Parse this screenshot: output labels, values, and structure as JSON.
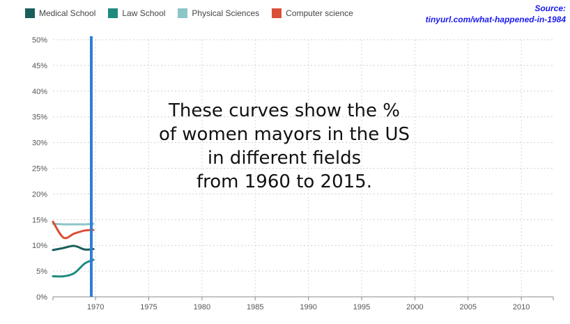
{
  "source": {
    "line1": "Source:",
    "line2": "tinyurl.com/what-happened-in-1984"
  },
  "chart_data": {
    "type": "line",
    "annotation": "These curves show the %\nof women mayors in the US\nin different fields\nfrom 1960 to 2015.",
    "xlim": [
      1966,
      2013
    ],
    "ylim": [
      0,
      50
    ],
    "x_ticks": [
      1970,
      1975,
      1980,
      1985,
      1990,
      1995,
      2000,
      2005,
      2010
    ],
    "y_ticks": [
      0,
      5,
      10,
      15,
      20,
      25,
      30,
      35,
      40,
      45,
      50
    ],
    "y_tick_labels": [
      "0%",
      "5%",
      "10%",
      "15%",
      "20%",
      "25%",
      "30%",
      "35%",
      "40%",
      "45%",
      "50%"
    ],
    "grid": true,
    "legend_position": "top-left",
    "cursor_year": 1969.6,
    "cursor_color": "#2f7fd6",
    "series": [
      {
        "name": "Medical School",
        "color": "#195e5a",
        "x": [
          1966,
          1967,
          1968,
          1969,
          1969.8
        ],
        "y": [
          9.1,
          9.5,
          9.9,
          9.2,
          9.3
        ]
      },
      {
        "name": "Law School",
        "color": "#1f8a7e",
        "x": [
          1966,
          1967,
          1968,
          1969,
          1969.8
        ],
        "y": [
          4.0,
          4.0,
          4.6,
          6.5,
          7.2
        ]
      },
      {
        "name": "Physical Sciences",
        "color": "#8cc6c6",
        "x": [
          1966,
          1967,
          1968,
          1969,
          1969.8
        ],
        "y": [
          14.2,
          14.1,
          14.1,
          14.1,
          14.2
        ]
      },
      {
        "name": "Computer science",
        "color": "#d94f37",
        "x": [
          1966,
          1967,
          1968,
          1969,
          1969.8
        ],
        "y": [
          14.6,
          11.5,
          12.3,
          12.9,
          13.0
        ]
      }
    ]
  }
}
